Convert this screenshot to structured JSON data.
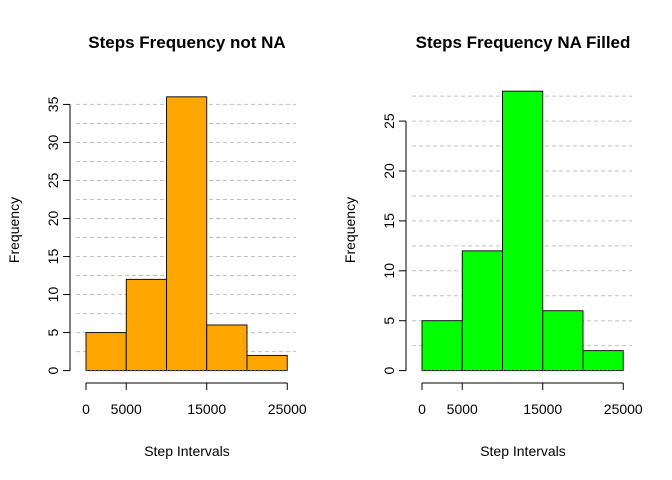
{
  "chart_data": [
    {
      "type": "bar",
      "title": "Steps Frequency not NA",
      "xlabel": "Step Intervals",
      "ylabel": "Frequency",
      "bin_edges": [
        0,
        5000,
        10000,
        15000,
        20000,
        25000
      ],
      "values": [
        5,
        12,
        36,
        6,
        2
      ],
      "xticks": [
        0,
        5000,
        15000,
        25000
      ],
      "yticks": [
        0,
        5,
        10,
        15,
        20,
        25,
        30,
        35
      ],
      "ylim": [
        0,
        36
      ],
      "grid": "horizontal dashed",
      "grid_step": 2.5,
      "bar_color": "#FFA500"
    },
    {
      "type": "bar",
      "title": "Steps Frequency NA Filled",
      "xlabel": "Step Intervals",
      "ylabel": "Frequency",
      "bin_edges": [
        0,
        5000,
        10000,
        15000,
        20000,
        25000
      ],
      "values": [
        5,
        12,
        28,
        6,
        2
      ],
      "xticks": [
        0,
        5000,
        15000,
        25000
      ],
      "yticks": [
        0,
        5,
        10,
        15,
        20,
        25
      ],
      "ylim": [
        0,
        28
      ],
      "grid": "horizontal dashed",
      "grid_step": 2.5,
      "bar_color": "#00FF00"
    }
  ]
}
